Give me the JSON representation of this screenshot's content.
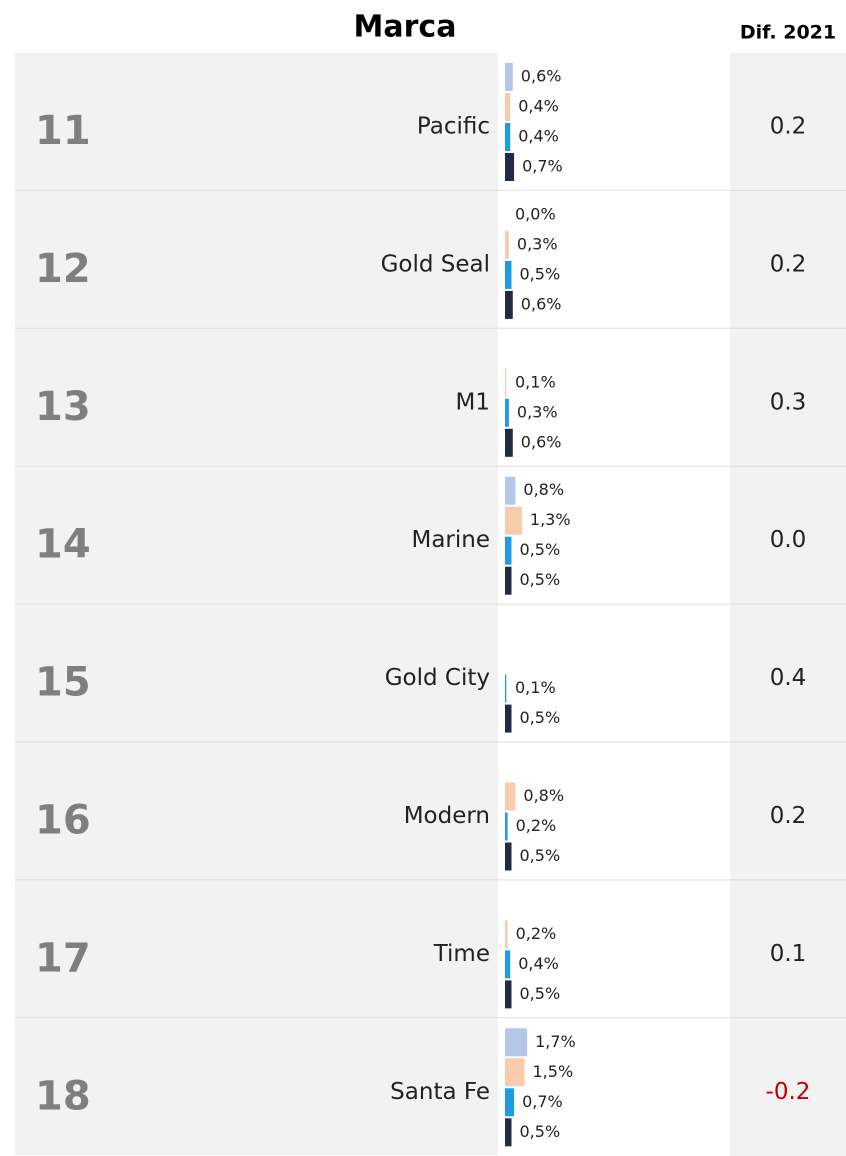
{
  "header": {
    "brand": "Marca",
    "diff": "Dif. 2021"
  },
  "series_colors": [
    "#b4c7e7",
    "#f8cbad",
    "#1f9be0",
    "#222a45"
  ],
  "rows": [
    {
      "rank": 11,
      "brand": "Pacific",
      "values": [
        0.6,
        0.4,
        0.4,
        0.7
      ],
      "value_labels": [
        "0,6%",
        "0,4%",
        "0,4%",
        "0,7%"
      ],
      "diff": "0.2"
    },
    {
      "rank": 12,
      "brand": "Gold Seal",
      "values": [
        0.0,
        0.3,
        0.5,
        0.6
      ],
      "value_labels": [
        "0,0%",
        "0,3%",
        "0,5%",
        "0,6%"
      ],
      "diff": "0.2"
    },
    {
      "rank": 13,
      "brand": "M1",
      "values": [
        null,
        0.1,
        0.3,
        0.6
      ],
      "value_labels": [
        null,
        "0,1%",
        "0,3%",
        "0,6%"
      ],
      "diff": "0.3"
    },
    {
      "rank": 14,
      "brand": "Marine",
      "values": [
        0.8,
        1.3,
        0.5,
        0.5
      ],
      "value_labels": [
        "0,8%",
        "1,3%",
        "0,5%",
        "0,5%"
      ],
      "diff": "0.0"
    },
    {
      "rank": 15,
      "brand": "Gold City",
      "values": [
        null,
        null,
        0.1,
        0.5
      ],
      "value_labels": [
        null,
        null,
        "0,1%",
        "0,5%"
      ],
      "diff": "0.4"
    },
    {
      "rank": 16,
      "brand": "Modern",
      "values": [
        null,
        0.8,
        0.2,
        0.5
      ],
      "value_labels": [
        null,
        "0,8%",
        "0,2%",
        "0,5%"
      ],
      "diff": "0.2"
    },
    {
      "rank": 17,
      "brand": "Time",
      "values": [
        null,
        0.2,
        0.4,
        0.5
      ],
      "value_labels": [
        null,
        "0,2%",
        "0,4%",
        "0,5%"
      ],
      "diff": "0.1"
    },
    {
      "rank": 18,
      "brand": "Santa Fe",
      "values": [
        1.7,
        1.5,
        0.7,
        0.5
      ],
      "value_labels": [
        "1,7%",
        "1,5%",
        "0,7%",
        "0,5%"
      ],
      "diff": "-0.2"
    }
  ]
}
